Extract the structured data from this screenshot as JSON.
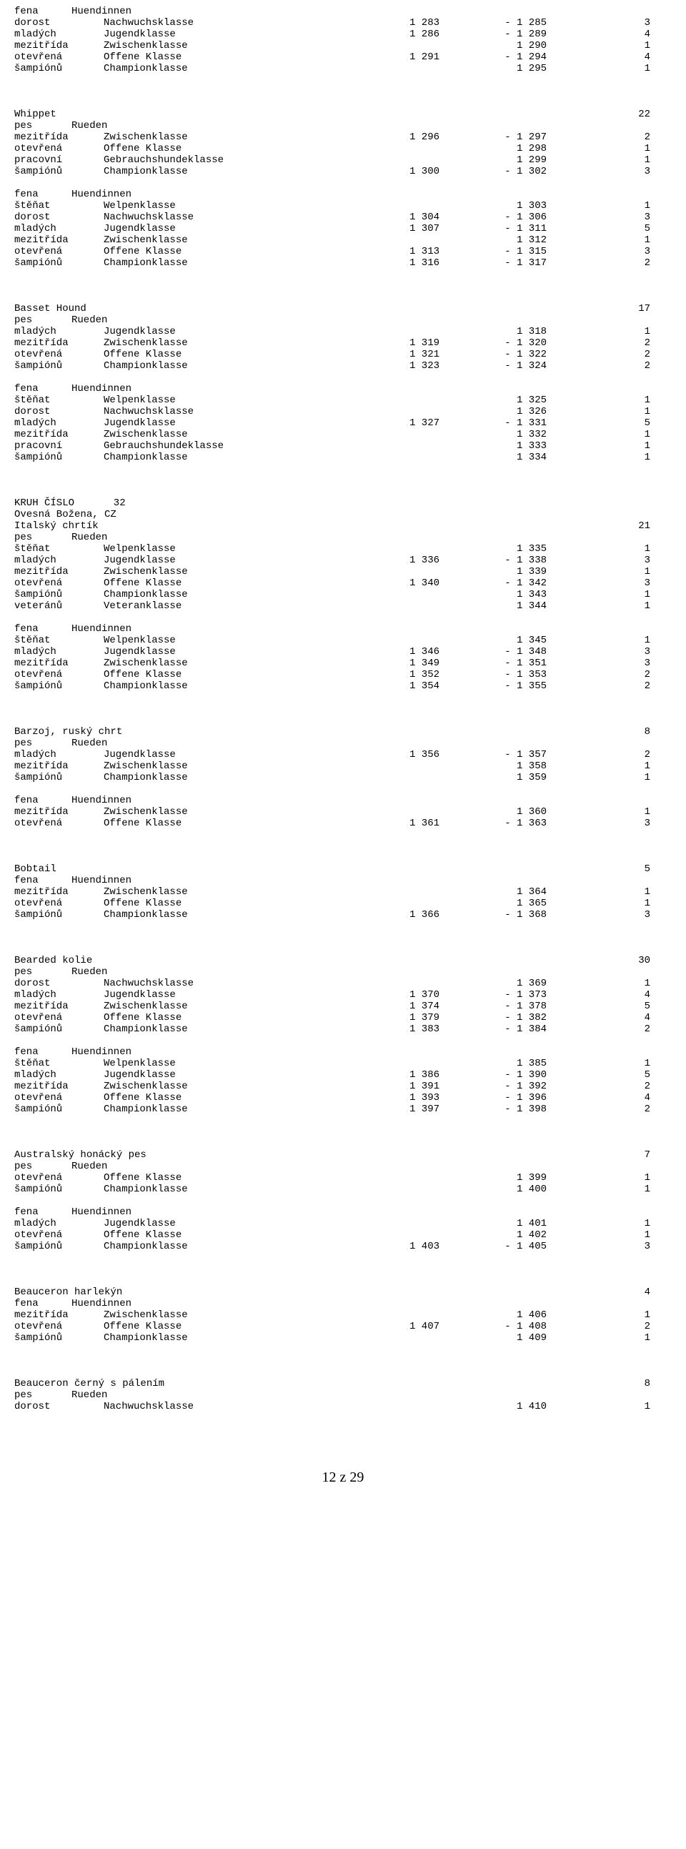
{
  "footer": "12 z 29",
  "lines": [
    {
      "t": "sec",
      "c1": "fena",
      "c2": "Huendinnen"
    },
    {
      "t": "r",
      "c1": "dorost",
      "c2": "Nachwuchsklasse",
      "c3": "1 283",
      "c4": "- 1 285",
      "c5": "3"
    },
    {
      "t": "r",
      "c1": "mladých",
      "c2": "Jugendklasse",
      "c3": "1 286",
      "c4": "- 1 289",
      "c5": "4"
    },
    {
      "t": "r",
      "c1": "mezitřída",
      "c2": "Zwischenklasse",
      "c3": "",
      "c4": "1 290",
      "c5": "1"
    },
    {
      "t": "r",
      "c1": "otevřená",
      "c2": "Offene Klasse",
      "c3": "1 291",
      "c4": "- 1 294",
      "c5": "4"
    },
    {
      "t": "r",
      "c1": "šampiónů",
      "c2": "Championklasse",
      "c3": "",
      "c4": "1 295",
      "c5": "1"
    },
    {
      "t": "bb"
    },
    {
      "t": "breed",
      "name": "Whippet",
      "count": "22"
    },
    {
      "t": "sec",
      "c1": "pes",
      "c2": "Rueden"
    },
    {
      "t": "r",
      "c1": "mezitřída",
      "c2": "Zwischenklasse",
      "c3": "1 296",
      "c4": "- 1 297",
      "c5": "2"
    },
    {
      "t": "r",
      "c1": "otevřená",
      "c2": "Offene Klasse",
      "c3": "",
      "c4": "1 298",
      "c5": "1"
    },
    {
      "t": "r",
      "c1": "pracovní",
      "c2": "Gebrauchshundeklasse",
      "c3": "",
      "c4": "1 299",
      "c5": "1"
    },
    {
      "t": "r",
      "c1": "šampiónů",
      "c2": "Championklasse",
      "c3": "1 300",
      "c4": "- 1 302",
      "c5": "3"
    },
    {
      "t": "b"
    },
    {
      "t": "sec",
      "c1": "fena",
      "c2": "Huendinnen"
    },
    {
      "t": "r",
      "c1": "štěňat",
      "c2": "Welpenklasse",
      "c3": "",
      "c4": "1 303",
      "c5": "1"
    },
    {
      "t": "r",
      "c1": "dorost",
      "c2": "Nachwuchsklasse",
      "c3": "1 304",
      "c4": "- 1 306",
      "c5": "3"
    },
    {
      "t": "r",
      "c1": "mladých",
      "c2": "Jugendklasse",
      "c3": "1 307",
      "c4": "- 1 311",
      "c5": "5"
    },
    {
      "t": "r",
      "c1": "mezitřída",
      "c2": "Zwischenklasse",
      "c3": "",
      "c4": "1 312",
      "c5": "1"
    },
    {
      "t": "r",
      "c1": "otevřená",
      "c2": "Offene Klasse",
      "c3": "1 313",
      "c4": "- 1 315",
      "c5": "3"
    },
    {
      "t": "r",
      "c1": "šampiónů",
      "c2": "Championklasse",
      "c3": "1 316",
      "c4": "- 1 317",
      "c5": "2"
    },
    {
      "t": "bb"
    },
    {
      "t": "breed",
      "name": "Basset Hound",
      "count": "17"
    },
    {
      "t": "sec",
      "c1": "pes",
      "c2": "Rueden"
    },
    {
      "t": "r",
      "c1": "mladých",
      "c2": "Jugendklasse",
      "c3": "",
      "c4": "1 318",
      "c5": "1"
    },
    {
      "t": "r",
      "c1": "mezitřída",
      "c2": "Zwischenklasse",
      "c3": "1 319",
      "c4": "- 1 320",
      "c5": "2"
    },
    {
      "t": "r",
      "c1": "otevřená",
      "c2": "Offene Klasse",
      "c3": "1 321",
      "c4": "- 1 322",
      "c5": "2"
    },
    {
      "t": "r",
      "c1": "šampiónů",
      "c2": "Championklasse",
      "c3": "1 323",
      "c4": "- 1 324",
      "c5": "2"
    },
    {
      "t": "b"
    },
    {
      "t": "sec",
      "c1": "fena",
      "c2": "Huendinnen"
    },
    {
      "t": "r",
      "c1": "štěňat",
      "c2": "Welpenklasse",
      "c3": "",
      "c4": "1 325",
      "c5": "1"
    },
    {
      "t": "r",
      "c1": "dorost",
      "c2": "Nachwuchsklasse",
      "c3": "",
      "c4": "1 326",
      "c5": "1"
    },
    {
      "t": "r",
      "c1": "mladých",
      "c2": "Jugendklasse",
      "c3": "1 327",
      "c4": "- 1 331",
      "c5": "5"
    },
    {
      "t": "r",
      "c1": "mezitřída",
      "c2": "Zwischenklasse",
      "c3": "",
      "c4": "1 332",
      "c5": "1"
    },
    {
      "t": "r",
      "c1": "pracovní",
      "c2": "Gebrauchshundeklasse",
      "c3": "",
      "c4": "1 333",
      "c5": "1"
    },
    {
      "t": "r",
      "c1": "šampiónů",
      "c2": "Championklasse",
      "c3": "",
      "c4": "1 334",
      "c5": "1"
    },
    {
      "t": "bb"
    },
    {
      "t": "sec",
      "c1": "KRUH ČÍSLO",
      "c2": "       32"
    },
    {
      "t": "sec",
      "c1": "Ovesná Božena, CZ",
      "c2": ""
    },
    {
      "t": "breed",
      "name": "Italský chrtík",
      "count": "21"
    },
    {
      "t": "sec",
      "c1": "pes",
      "c2": "Rueden"
    },
    {
      "t": "r",
      "c1": "štěňat",
      "c2": "Welpenklasse",
      "c3": "",
      "c4": "1 335",
      "c5": "1"
    },
    {
      "t": "r",
      "c1": "mladých",
      "c2": "Jugendklasse",
      "c3": "1 336",
      "c4": "- 1 338",
      "c5": "3"
    },
    {
      "t": "r",
      "c1": "mezitřída",
      "c2": "Zwischenklasse",
      "c3": "",
      "c4": "1 339",
      "c5": "1"
    },
    {
      "t": "r",
      "c1": "otevřená",
      "c2": "Offene Klasse",
      "c3": "1 340",
      "c4": "- 1 342",
      "c5": "3"
    },
    {
      "t": "r",
      "c1": "šampiónů",
      "c2": "Championklasse",
      "c3": "",
      "c4": "1 343",
      "c5": "1"
    },
    {
      "t": "r",
      "c1": "veteránů",
      "c2": "Veteranklasse",
      "c3": "",
      "c4": "1 344",
      "c5": "1"
    },
    {
      "t": "b"
    },
    {
      "t": "sec",
      "c1": "fena",
      "c2": "Huendinnen"
    },
    {
      "t": "r",
      "c1": "štěňat",
      "c2": "Welpenklasse",
      "c3": "",
      "c4": "1 345",
      "c5": "1"
    },
    {
      "t": "r",
      "c1": "mladých",
      "c2": "Jugendklasse",
      "c3": "1 346",
      "c4": "- 1 348",
      "c5": "3"
    },
    {
      "t": "r",
      "c1": "mezitřída",
      "c2": "Zwischenklasse",
      "c3": "1 349",
      "c4": "- 1 351",
      "c5": "3"
    },
    {
      "t": "r",
      "c1": "otevřená",
      "c2": "Offene Klasse",
      "c3": "1 352",
      "c4": "- 1 353",
      "c5": "2"
    },
    {
      "t": "r",
      "c1": "šampiónů",
      "c2": "Championklasse",
      "c3": "1 354",
      "c4": "- 1 355",
      "c5": "2"
    },
    {
      "t": "bb"
    },
    {
      "t": "breed",
      "name": "Barzoj, ruský chrt",
      "count": "8"
    },
    {
      "t": "sec",
      "c1": "pes",
      "c2": "Rueden"
    },
    {
      "t": "r",
      "c1": "mladých",
      "c2": "Jugendklasse",
      "c3": "1 356",
      "c4": "- 1 357",
      "c5": "2"
    },
    {
      "t": "r",
      "c1": "mezitřída",
      "c2": "Zwischenklasse",
      "c3": "",
      "c4": "1 358",
      "c5": "1"
    },
    {
      "t": "r",
      "c1": "šampiónů",
      "c2": "Championklasse",
      "c3": "",
      "c4": "1 359",
      "c5": "1"
    },
    {
      "t": "b"
    },
    {
      "t": "sec",
      "c1": "fena",
      "c2": "Huendinnen"
    },
    {
      "t": "r",
      "c1": "mezitřída",
      "c2": "Zwischenklasse",
      "c3": "",
      "c4": "1 360",
      "c5": "1"
    },
    {
      "t": "r",
      "c1": "otevřená",
      "c2": "Offene Klasse",
      "c3": "1 361",
      "c4": "- 1 363",
      "c5": "3"
    },
    {
      "t": "bb"
    },
    {
      "t": "breed",
      "name": "Bobtail",
      "count": "5"
    },
    {
      "t": "sec",
      "c1": "fena",
      "c2": "Huendinnen"
    },
    {
      "t": "r",
      "c1": "mezitřída",
      "c2": "Zwischenklasse",
      "c3": "",
      "c4": "1 364",
      "c5": "1"
    },
    {
      "t": "r",
      "c1": "otevřená",
      "c2": "Offene Klasse",
      "c3": "",
      "c4": "1 365",
      "c5": "1"
    },
    {
      "t": "r",
      "c1": "šampiónů",
      "c2": "Championklasse",
      "c3": "1 366",
      "c4": "- 1 368",
      "c5": "3"
    },
    {
      "t": "bb"
    },
    {
      "t": "breed",
      "name": "Bearded kolie",
      "count": "30"
    },
    {
      "t": "sec",
      "c1": "pes",
      "c2": "Rueden"
    },
    {
      "t": "r",
      "c1": "dorost",
      "c2": "Nachwuchsklasse",
      "c3": "",
      "c4": "1 369",
      "c5": "1"
    },
    {
      "t": "r",
      "c1": "mladých",
      "c2": "Jugendklasse",
      "c3": "1 370",
      "c4": "- 1 373",
      "c5": "4"
    },
    {
      "t": "r",
      "c1": "mezitřída",
      "c2": "Zwischenklasse",
      "c3": "1 374",
      "c4": "- 1 378",
      "c5": "5"
    },
    {
      "t": "r",
      "c1": "otevřená",
      "c2": "Offene Klasse",
      "c3": "1 379",
      "c4": "- 1 382",
      "c5": "4"
    },
    {
      "t": "r",
      "c1": "šampiónů",
      "c2": "Championklasse",
      "c3": "1 383",
      "c4": "- 1 384",
      "c5": "2"
    },
    {
      "t": "b"
    },
    {
      "t": "sec",
      "c1": "fena",
      "c2": "Huendinnen"
    },
    {
      "t": "r",
      "c1": "štěňat",
      "c2": "Welpenklasse",
      "c3": "",
      "c4": "1 385",
      "c5": "1"
    },
    {
      "t": "r",
      "c1": "mladých",
      "c2": "Jugendklasse",
      "c3": "1 386",
      "c4": "- 1 390",
      "c5": "5"
    },
    {
      "t": "r",
      "c1": "mezitřída",
      "c2": "Zwischenklasse",
      "c3": "1 391",
      "c4": "- 1 392",
      "c5": "2"
    },
    {
      "t": "r",
      "c1": "otevřená",
      "c2": "Offene Klasse",
      "c3": "1 393",
      "c4": "- 1 396",
      "c5": "4"
    },
    {
      "t": "r",
      "c1": "šampiónů",
      "c2": "Championklasse",
      "c3": "1 397",
      "c4": "- 1 398",
      "c5": "2"
    },
    {
      "t": "bb"
    },
    {
      "t": "breed",
      "name": "Australský honácký pes",
      "count": "7"
    },
    {
      "t": "sec",
      "c1": "pes",
      "c2": "Rueden"
    },
    {
      "t": "r",
      "c1": "otevřená",
      "c2": "Offene Klasse",
      "c3": "",
      "c4": "1 399",
      "c5": "1"
    },
    {
      "t": "r",
      "c1": "šampiónů",
      "c2": "Championklasse",
      "c3": "",
      "c4": "1 400",
      "c5": "1"
    },
    {
      "t": "b"
    },
    {
      "t": "sec",
      "c1": "fena",
      "c2": "Huendinnen"
    },
    {
      "t": "r",
      "c1": "mladých",
      "c2": "Jugendklasse",
      "c3": "",
      "c4": "1 401",
      "c5": "1"
    },
    {
      "t": "r",
      "c1": "otevřená",
      "c2": "Offene Klasse",
      "c3": "",
      "c4": "1 402",
      "c5": "1"
    },
    {
      "t": "r",
      "c1": "šampiónů",
      "c2": "Championklasse",
      "c3": "1 403",
      "c4": "- 1 405",
      "c5": "3"
    },
    {
      "t": "bb"
    },
    {
      "t": "breed",
      "name": "Beauceron harlekýn",
      "count": "4"
    },
    {
      "t": "sec",
      "c1": "fena",
      "c2": "Huendinnen"
    },
    {
      "t": "r",
      "c1": "mezitřída",
      "c2": "Zwischenklasse",
      "c3": "",
      "c4": "1 406",
      "c5": "1"
    },
    {
      "t": "r",
      "c1": "otevřená",
      "c2": "Offene Klasse",
      "c3": "1 407",
      "c4": "- 1 408",
      "c5": "2"
    },
    {
      "t": "r",
      "c1": "šampiónů",
      "c2": "Championklasse",
      "c3": "",
      "c4": "1 409",
      "c5": "1"
    },
    {
      "t": "bb"
    },
    {
      "t": "breed",
      "name": "Beauceron černý s pálením",
      "count": "8"
    },
    {
      "t": "sec",
      "c1": "pes",
      "c2": "Rueden"
    },
    {
      "t": "r",
      "c1": "dorost",
      "c2": "Nachwuchsklasse",
      "c3": "",
      "c4": "1 410",
      "c5": "1"
    }
  ]
}
